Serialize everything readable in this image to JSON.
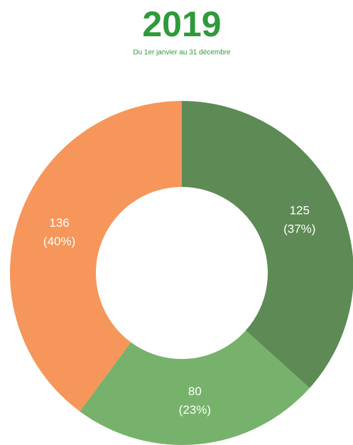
{
  "chart_data": {
    "type": "donut",
    "title": "2019",
    "subtitle": "Du 1er janvier au 31 décembre",
    "categories": [
      null,
      null,
      null
    ],
    "values": [
      125,
      80,
      136
    ],
    "percents": [
      37,
      23,
      40
    ],
    "percent_labels": [
      "(37%)",
      "(23%)",
      "(40%)"
    ],
    "colors": [
      "#5d8a55",
      "#76b26b",
      "#f7965a"
    ]
  }
}
